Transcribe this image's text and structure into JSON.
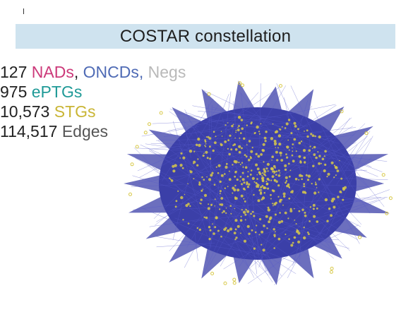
{
  "title": "COSTAR constellation",
  "stats": [
    {
      "count": "127",
      "parts": [
        {
          "text": "NADs",
          "color": "#cc3a7a"
        },
        {
          "text": ", ",
          "color": "#222222"
        },
        {
          "text": "ONCDs",
          "color": "#4f6bb5"
        },
        {
          "text": ", ",
          "color": "#4f6bb5"
        },
        {
          "text": "Negs",
          "color": "#b9b9b9"
        }
      ]
    },
    {
      "count": "975",
      "parts": [
        {
          "text": "ePTGs",
          "color": "#1f9a97"
        }
      ]
    },
    {
      "count": "10,573",
      "parts": [
        {
          "text": "STGs",
          "color": "#c9b534"
        }
      ]
    },
    {
      "count": "114,517",
      "parts": [
        {
          "text": "Edges",
          "color": "#555555"
        }
      ]
    }
  ],
  "colors": {
    "edge": "#3b3fa8",
    "node": "#d8c94a",
    "title_bg": "#cfe3ef"
  }
}
